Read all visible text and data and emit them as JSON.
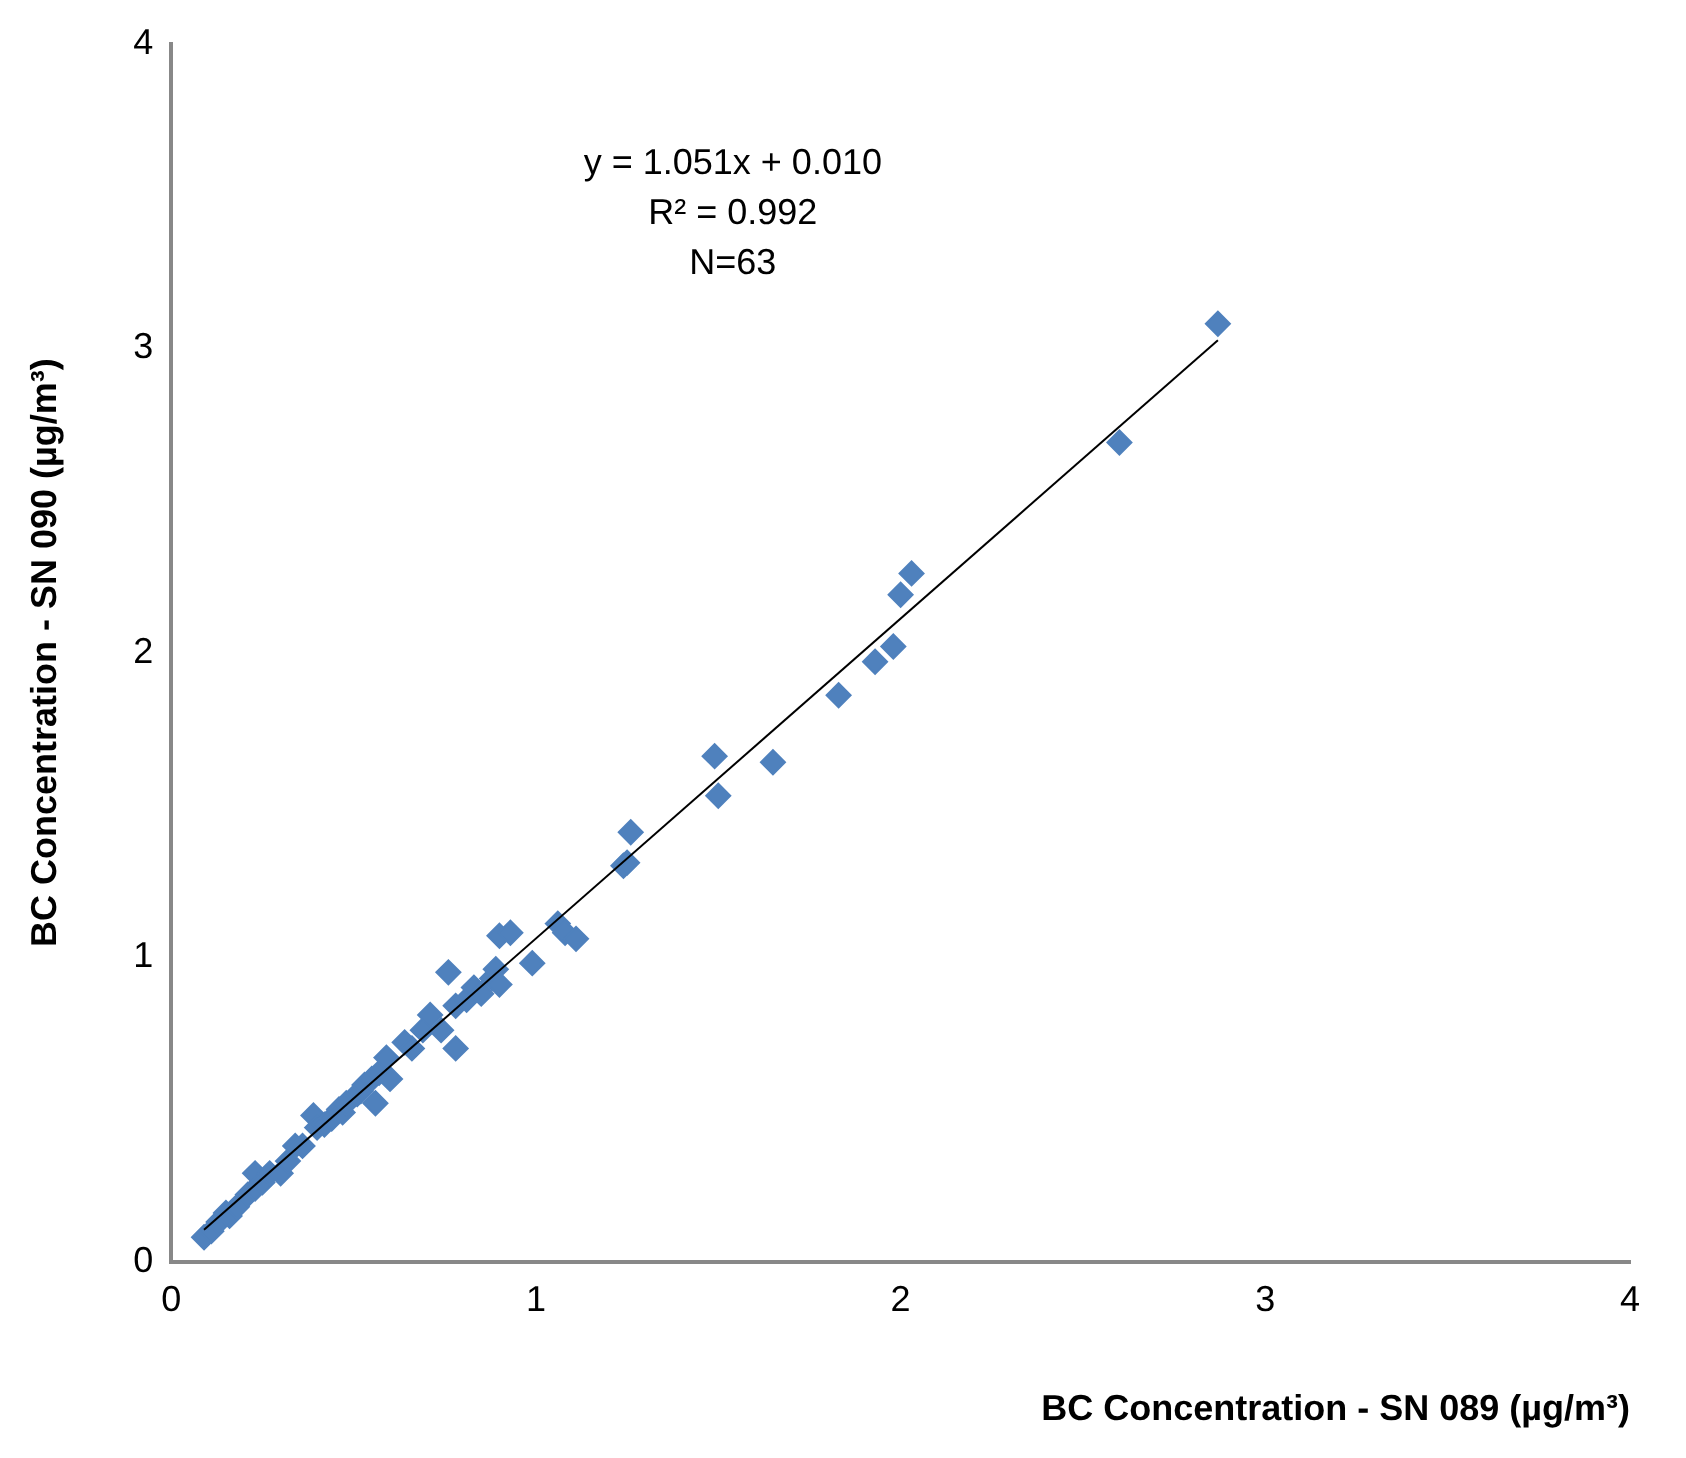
{
  "chart_data": {
    "type": "scatter",
    "xlabel": "BC Concentration - SN 089 (µg/m³)",
    "ylabel": "BC Concentration - SN 090 (µg/m³)",
    "xlim": [
      0,
      4
    ],
    "ylim": [
      0,
      4
    ],
    "xticks": [
      0,
      1,
      2,
      3,
      4
    ],
    "yticks": [
      0,
      1,
      2,
      3,
      4
    ],
    "grid": false,
    "legend": false,
    "marker": "diamond",
    "annotations": [
      "y = 1.051x + 0.010",
      "R² = 0.992",
      "N=63"
    ],
    "series": [
      {
        "color": "#4f81bd",
        "x": [
          0.09,
          0.11,
          0.13,
          0.15,
          0.16,
          0.18,
          0.21,
          0.23,
          0.23,
          0.25,
          0.27,
          0.3,
          0.32,
          0.34,
          0.36,
          0.39,
          0.4,
          0.42,
          0.44,
          0.46,
          0.47,
          0.48,
          0.51,
          0.52,
          0.53,
          0.55,
          0.56,
          0.57,
          0.59,
          0.6,
          0.64,
          0.66,
          0.69,
          0.71,
          0.74,
          0.76,
          0.78,
          0.78,
          0.81,
          0.83,
          0.85,
          0.88,
          0.89,
          0.9,
          0.9,
          0.93,
          0.99,
          1.06,
          1.08,
          1.11,
          1.24,
          1.25,
          1.26,
          1.49,
          1.5,
          1.65,
          1.83,
          1.93,
          1.98,
          2.0,
          2.03,
          2.6,
          2.87
        ],
        "values": [
          0.08,
          0.1,
          0.13,
          0.16,
          0.15,
          0.18,
          0.22,
          0.24,
          0.29,
          0.26,
          0.29,
          0.29,
          0.33,
          0.38,
          0.38,
          0.48,
          0.44,
          0.45,
          0.47,
          0.5,
          0.49,
          0.52,
          0.55,
          0.56,
          0.58,
          0.6,
          0.52,
          0.62,
          0.67,
          0.6,
          0.72,
          0.7,
          0.76,
          0.81,
          0.76,
          0.95,
          0.7,
          0.84,
          0.86,
          0.9,
          0.88,
          0.93,
          0.96,
          0.91,
          1.07,
          1.08,
          0.98,
          1.11,
          1.08,
          1.06,
          1.3,
          1.31,
          1.41,
          1.66,
          1.53,
          1.64,
          1.86,
          1.97,
          2.02,
          2.19,
          2.26,
          2.69,
          3.08
        ]
      },
      {
        "type": "line",
        "color": "#000000",
        "marker": "none",
        "x": [
          0.09,
          2.87
        ],
        "values": [
          0.105,
          3.026
        ]
      }
    ]
  }
}
